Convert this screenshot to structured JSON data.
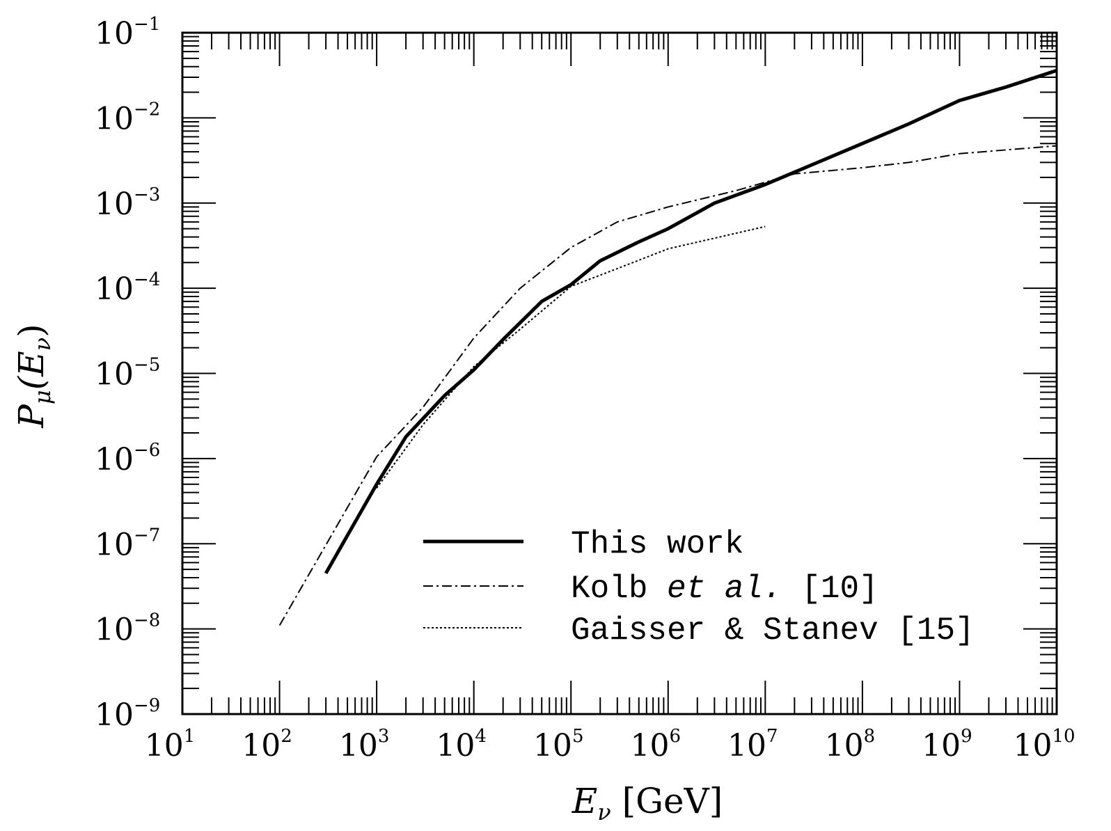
{
  "chart_data": {
    "type": "line",
    "x_scale": "log",
    "y_scale": "log",
    "xlim": [
      10,
      10000000000
    ],
    "ylim": [
      1e-09,
      0.1
    ],
    "grid": false,
    "legend_position": "bottom-right",
    "x_ticks": [
      {
        "base": "10",
        "exp": "1"
      },
      {
        "base": "10",
        "exp": "2"
      },
      {
        "base": "10",
        "exp": "3"
      },
      {
        "base": "10",
        "exp": "4"
      },
      {
        "base": "10",
        "exp": "5"
      },
      {
        "base": "10",
        "exp": "6"
      },
      {
        "base": "10",
        "exp": "7"
      },
      {
        "base": "10",
        "exp": "8"
      },
      {
        "base": "10",
        "exp": "9"
      },
      {
        "base": "10",
        "exp": "10"
      }
    ],
    "y_ticks": [
      {
        "base": "10",
        "exp": "−9"
      },
      {
        "base": "10",
        "exp": "−8"
      },
      {
        "base": "10",
        "exp": "−7"
      },
      {
        "base": "10",
        "exp": "−6"
      },
      {
        "base": "10",
        "exp": "−5"
      },
      {
        "base": "10",
        "exp": "−4"
      },
      {
        "base": "10",
        "exp": "−3"
      },
      {
        "base": "10",
        "exp": "−2"
      },
      {
        "base": "10",
        "exp": "−1"
      }
    ],
    "xlabel": {
      "main": "E",
      "sub": "ν",
      "unit": " [GeV]"
    },
    "ylabel": {
      "main": "P",
      "sub": "μ",
      "arg_open": "(E",
      "arg_sub": "ν",
      "arg_close": ")"
    },
    "series": [
      {
        "name": "This work",
        "style": "solid-thick",
        "color": "#000000",
        "x": [
          300,
          1000,
          2000,
          5000,
          10000,
          20000,
          50000,
          100000,
          200000,
          500000,
          1000000,
          3000000,
          10000000,
          30000000,
          100000000,
          300000000,
          1000000000,
          3000000000,
          10000000000
        ],
        "y": [
          4.5e-08,
          5e-07,
          1.8e-06,
          5.5e-06,
          1.1e-05,
          2.5e-05,
          7e-05,
          0.00011,
          0.00021,
          0.00035,
          0.0005,
          0.001,
          0.00165,
          0.0028,
          0.005,
          0.0085,
          0.016,
          0.023,
          0.036
        ]
      },
      {
        "name": "Kolb et al. [10]",
        "style": "dash-dot",
        "color": "#000000",
        "x": [
          100,
          1000,
          3000,
          10000,
          30000,
          100000,
          300000,
          1000000,
          5000000,
          20000000,
          100000000,
          300000000,
          1000000000,
          10000000000
        ],
        "y": [
          1.1e-08,
          1.05e-06,
          4e-06,
          2.6e-05,
          0.0001,
          0.0003,
          0.0006,
          0.0009,
          0.0014,
          0.0022,
          0.0026,
          0.003,
          0.0038,
          0.0047
        ]
      },
      {
        "name": "Gaisser & Stanev [15]",
        "style": "dotted",
        "color": "#000000",
        "x": [
          1000,
          3000,
          10000,
          30000,
          100000,
          300000,
          1000000,
          10000000
        ],
        "y": [
          4.5e-07,
          2.5e-06,
          1.2e-05,
          3.3e-05,
          0.000105,
          0.00017,
          0.00029,
          0.00053
        ]
      }
    ],
    "legend": {
      "this_work": "This work",
      "kolb_prefix": "Kolb ",
      "kolb_italic": "et al.",
      "kolb_suffix": " [10]",
      "gaisser": "Gaisser & Stanev [15]"
    }
  }
}
